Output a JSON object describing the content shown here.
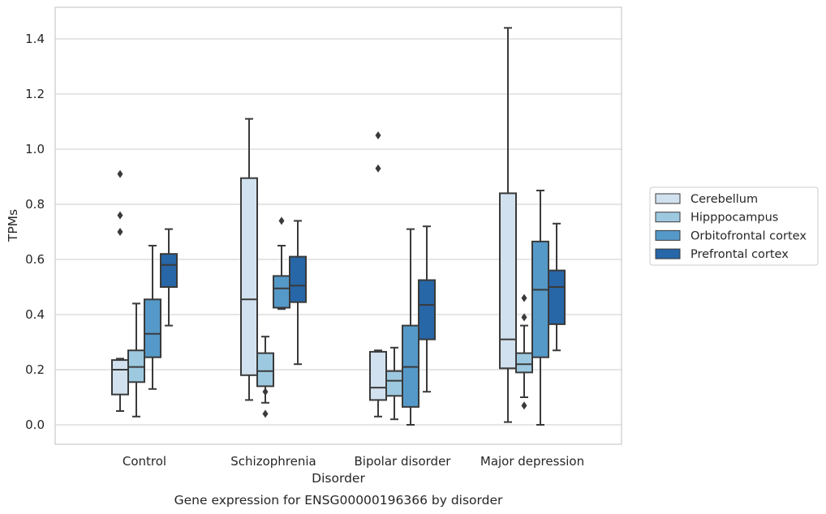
{
  "chart_data": {
    "type": "box",
    "xlabel": "Disorder",
    "ylabel": "TPMs",
    "caption": "Gene expression for ENSG00000196366 by disorder",
    "ylim": [
      -0.07,
      1.52
    ],
    "yticks": [
      "0.0",
      "0.2",
      "0.4",
      "0.6",
      "0.8",
      "1.0",
      "1.2",
      "1.4"
    ],
    "grid": true,
    "legend_position": "right",
    "categories": [
      "Control",
      "Schizophrenia",
      "Bipolar disorder",
      "Major depression"
    ],
    "series": [
      {
        "name": "Cerebellum",
        "color": "#d1e1ef",
        "boxes": [
          {
            "whislo": 0.05,
            "q1": 0.11,
            "med": 0.2,
            "q3": 0.235,
            "whishi": 0.24,
            "fliers": [
              0.7,
              0.76,
              0.91
            ]
          },
          {
            "whislo": 0.09,
            "q1": 0.18,
            "med": 0.455,
            "q3": 0.895,
            "whishi": 1.11,
            "fliers": []
          },
          {
            "whislo": 0.03,
            "q1": 0.09,
            "med": 0.135,
            "q3": 0.265,
            "whishi": 0.27,
            "fliers": [
              0.93,
              1.05
            ]
          },
          {
            "whislo": 0.01,
            "q1": 0.205,
            "med": 0.31,
            "q3": 0.84,
            "whishi": 1.44,
            "fliers": []
          }
        ]
      },
      {
        "name": "Hipppocampus",
        "color": "#9dc9e0",
        "boxes": [
          {
            "whislo": 0.03,
            "q1": 0.155,
            "med": 0.21,
            "q3": 0.27,
            "whishi": 0.44,
            "fliers": []
          },
          {
            "whislo": 0.08,
            "q1": 0.14,
            "med": 0.195,
            "q3": 0.26,
            "whishi": 0.32,
            "fliers": [
              0.04,
              0.12
            ]
          },
          {
            "whislo": 0.02,
            "q1": 0.105,
            "med": 0.16,
            "q3": 0.195,
            "whishi": 0.28,
            "fliers": []
          },
          {
            "whislo": 0.1,
            "q1": 0.19,
            "med": 0.22,
            "q3": 0.26,
            "whishi": 0.36,
            "fliers": [
              0.07,
              0.39,
              0.46
            ]
          }
        ]
      },
      {
        "name": "Orbitofrontal cortex",
        "color": "#5599c8",
        "boxes": [
          {
            "whislo": 0.13,
            "q1": 0.245,
            "med": 0.33,
            "q3": 0.455,
            "whishi": 0.65,
            "fliers": []
          },
          {
            "whislo": 0.42,
            "q1": 0.425,
            "med": 0.495,
            "q3": 0.54,
            "whishi": 0.65,
            "fliers": [
              0.74
            ]
          },
          {
            "whislo": 0.0,
            "q1": 0.065,
            "med": 0.21,
            "q3": 0.36,
            "whishi": 0.71,
            "fliers": []
          },
          {
            "whislo": 0.0,
            "q1": 0.245,
            "med": 0.49,
            "q3": 0.665,
            "whishi": 0.85,
            "fliers": []
          }
        ]
      },
      {
        "name": "Prefrontal cortex",
        "color": "#2766a7",
        "boxes": [
          {
            "whislo": 0.36,
            "q1": 0.5,
            "med": 0.58,
            "q3": 0.62,
            "whishi": 0.71,
            "fliers": []
          },
          {
            "whislo": 0.22,
            "q1": 0.445,
            "med": 0.505,
            "q3": 0.61,
            "whishi": 0.74,
            "fliers": []
          },
          {
            "whislo": 0.12,
            "q1": 0.31,
            "med": 0.435,
            "q3": 0.525,
            "whishi": 0.72,
            "fliers": []
          },
          {
            "whislo": 0.27,
            "q1": 0.365,
            "med": 0.5,
            "q3": 0.56,
            "whishi": 0.73,
            "fliers": []
          }
        ]
      }
    ]
  }
}
